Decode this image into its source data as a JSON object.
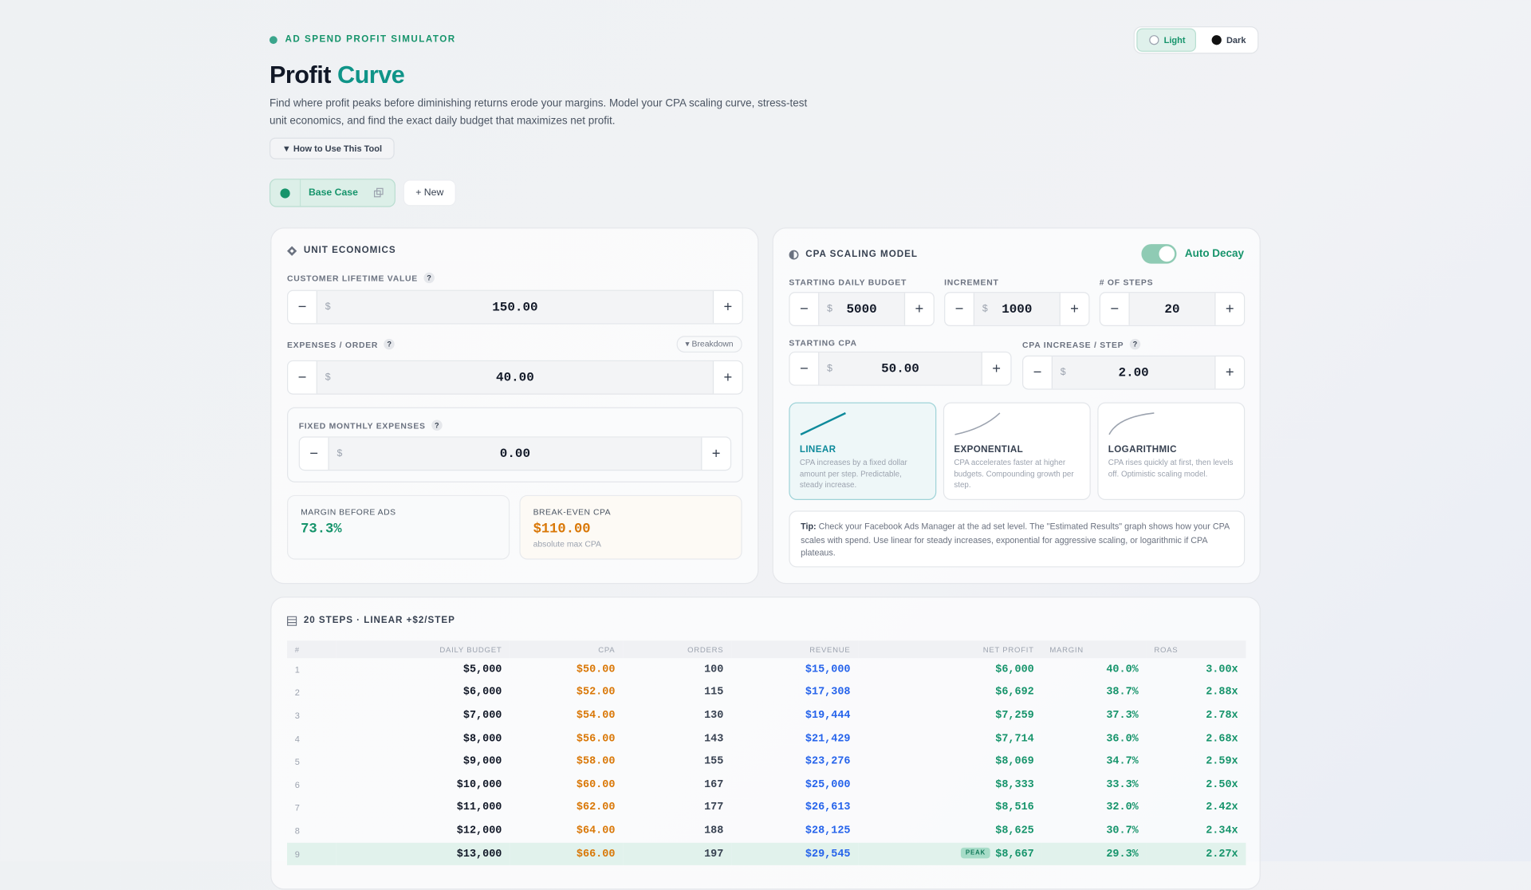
{
  "header": {
    "eyebrow": "AD SPEND PROFIT SIMULATOR",
    "title_main": "Profit",
    "title_accent": "Curve",
    "description": "Find where profit peaks before diminishing returns erode your margins. Model your CPA scaling curve, stress-test unit economics, and find the exact daily budget that maximizes net profit.",
    "how_to": "▼ How to Use This Tool"
  },
  "theme": {
    "light": "Light",
    "dark": "Dark"
  },
  "scenarios": {
    "active": "Base Case",
    "new": "+ New"
  },
  "controls": {
    "minus": "−",
    "plus": "+",
    "currency": "$",
    "help": "?"
  },
  "unit_economics": {
    "title": "UNIT ECONOMICS",
    "clv_label": "CUSTOMER LIFETIME VALUE",
    "clv_value": "150.00",
    "expenses_label": "EXPENSES / ORDER",
    "breakdown": "▾ Breakdown",
    "expenses_value": "40.00",
    "fixed_label": "FIXED MONTHLY EXPENSES",
    "fixed_value": "0.00",
    "margin_label": "MARGIN BEFORE ADS",
    "margin_value": "73.3%",
    "breakeven_label": "BREAK-EVEN CPA",
    "breakeven_value": "$110.00",
    "breakeven_note": "absolute max CPA"
  },
  "cpa_model": {
    "title": "CPA SCALING MODEL",
    "auto_decay": "Auto Decay",
    "budget_label": "STARTING DAILY BUDGET",
    "budget_value": "5000",
    "increment_label": "INCREMENT",
    "increment_value": "1000",
    "steps_label": "# OF STEPS",
    "steps_value": "20",
    "cpa_label": "STARTING CPA",
    "cpa_value": "50.00",
    "cpa_increase_label": "CPA INCREASE / STEP",
    "cpa_increase_value": "2.00",
    "models": [
      {
        "name": "LINEAR",
        "description": "CPA increases by a fixed dollar amount per step. Predictable, steady increase."
      },
      {
        "name": "EXPONENTIAL",
        "description": "CPA accelerates faster at higher budgets. Compounding growth per step."
      },
      {
        "name": "LOGARITHMIC",
        "description": "CPA rises quickly at first, then levels off. Optimistic scaling model."
      }
    ],
    "tip_label": "Tip:",
    "tip_text": "Check your Facebook Ads Manager at the ad set level. The \"Estimated Results\" graph shows how your CPA scales with spend. Use linear for steady increases, exponential for aggressive scaling, or logarithmic if CPA plateaus."
  },
  "table": {
    "title": "20 STEPS · LINEAR +$2/STEP",
    "columns": [
      "#",
      "DAILY BUDGET",
      "CPA",
      "ORDERS",
      "REVENUE",
      "NET PROFIT",
      "MARGIN",
      "ROAS"
    ],
    "rows": [
      {
        "cells": [
          "1",
          "$5,000",
          "$50.00",
          "100",
          "$15,000",
          "$6,000",
          "40.0%",
          "3.00x"
        ]
      },
      {
        "cells": [
          "2",
          "$6,000",
          "$52.00",
          "115",
          "$17,308",
          "$6,692",
          "38.7%",
          "2.88x"
        ]
      },
      {
        "cells": [
          "3",
          "$7,000",
          "$54.00",
          "130",
          "$19,444",
          "$7,259",
          "37.3%",
          "2.78x"
        ]
      },
      {
        "cells": [
          "4",
          "$8,000",
          "$56.00",
          "143",
          "$21,429",
          "$7,714",
          "36.0%",
          "2.68x"
        ]
      },
      {
        "cells": [
          "5",
          "$9,000",
          "$58.00",
          "155",
          "$23,276",
          "$8,069",
          "34.7%",
          "2.59x"
        ]
      },
      {
        "cells": [
          "6",
          "$10,000",
          "$60.00",
          "167",
          "$25,000",
          "$8,333",
          "33.3%",
          "2.50x"
        ]
      },
      {
        "cells": [
          "7",
          "$11,000",
          "$62.00",
          "177",
          "$26,613",
          "$8,516",
          "32.0%",
          "2.42x"
        ]
      },
      {
        "cells": [
          "8",
          "$12,000",
          "$64.00",
          "188",
          "$28,125",
          "$8,625",
          "30.7%",
          "2.34x"
        ]
      },
      {
        "cells": [
          "9",
          "$13,000",
          "$66.00",
          "197",
          "$29,545",
          "$8,667",
          "29.3%",
          "2.27x"
        ],
        "badge": "PEAK"
      }
    ]
  }
}
